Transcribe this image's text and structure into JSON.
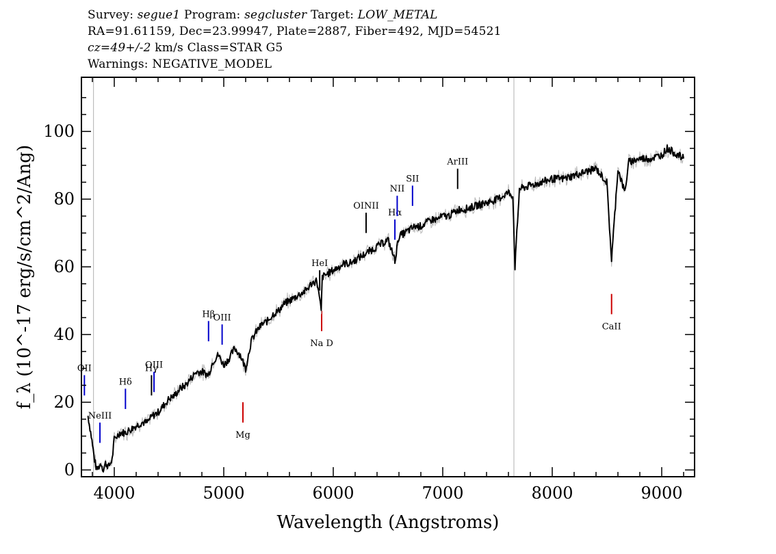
{
  "header": {
    "survey_label": "Survey:",
    "survey": "segue1",
    "program_label": "Program:",
    "program": "segcluster",
    "target_label": "Target:",
    "target": "LOW_METAL",
    "line2": "RA=91.61159, Dec=23.99947, Plate=2887, Fiber=492, MJD=54521",
    "cz": "cz=49+/-2",
    "cz_units_class": "km/s Class=STAR G5",
    "warnings": "Warnings: NEGATIVE_MODEL"
  },
  "chart_data": {
    "type": "line",
    "xlabel": "Wavelength (Angstroms)",
    "ylabel": "f_λ (10^-17 erg/s/cm^2/Ang)",
    "xlim": [
      3700,
      9300
    ],
    "ylim": [
      -2,
      116
    ],
    "x_ticks": [
      4000,
      5000,
      6000,
      7000,
      8000,
      9000
    ],
    "y_ticks": [
      0,
      20,
      40,
      60,
      80,
      100
    ],
    "grid": false,
    "vertical_markers": [
      3810,
      7650
    ],
    "series": [
      {
        "color": "#000000",
        "x": [
          3760,
          3790,
          3820,
          3840,
          3860,
          3880,
          3900,
          3920,
          3950,
          3980,
          4000,
          4050,
          4100,
          4150,
          4200,
          4250,
          4300,
          4350,
          4400,
          4450,
          4500,
          4550,
          4600,
          4650,
          4700,
          4750,
          4800,
          4860,
          4900,
          4950,
          5000,
          5050,
          5100,
          5150,
          5200,
          5250,
          5300,
          5350,
          5400,
          5450,
          5500,
          5550,
          5600,
          5650,
          5700,
          5750,
          5800,
          5850,
          5890,
          5900,
          5950,
          6000,
          6050,
          6100,
          6150,
          6200,
          6250,
          6300,
          6350,
          6400,
          6450,
          6500,
          6563,
          6600,
          6650,
          6700,
          6750,
          6800,
          6850,
          6900,
          6950,
          7000,
          7050,
          7100,
          7150,
          7200,
          7300,
          7400,
          7500,
          7600,
          7640,
          7660,
          7700,
          7800,
          7900,
          8000,
          8100,
          8200,
          8300,
          8400,
          8498,
          8542,
          8600,
          8662,
          8700,
          8800,
          8900,
          9000,
          9050,
          9100,
          9150,
          9200
        ],
        "y": [
          16,
          10,
          3,
          0,
          1,
          2,
          0,
          2,
          1,
          3,
          9,
          11,
          11,
          12,
          13,
          14,
          14,
          16,
          17,
          19,
          21,
          22,
          24,
          25,
          27,
          29,
          29,
          28,
          32,
          34,
          31,
          33,
          36,
          34,
          30,
          38,
          41,
          43,
          44,
          46,
          47,
          49,
          50,
          51,
          52,
          53,
          55,
          56,
          47,
          57,
          58,
          59,
          60,
          61,
          61,
          62,
          63,
          64,
          65,
          66,
          67,
          68,
          62,
          69,
          70,
          71,
          72,
          72,
          73,
          74,
          74,
          75,
          75,
          76,
          77,
          77,
          78,
          79,
          80,
          82,
          81,
          60,
          83,
          84,
          85,
          86,
          86,
          87,
          88,
          89,
          85,
          62,
          89,
          82,
          91,
          92,
          92,
          93,
          95,
          94,
          93,
          92
        ]
      }
    ],
    "line_labels": [
      {
        "label": "OII",
        "wavelength": 3727,
        "color": "#0000cc"
      },
      {
        "label": "NeIII",
        "wavelength": 3869,
        "color": "#0000cc"
      },
      {
        "label": "Hδ",
        "wavelength": 4102,
        "color": "#0000cc"
      },
      {
        "label": "Hγ",
        "wavelength": 4340,
        "color": "#000000"
      },
      {
        "label": "OIII",
        "wavelength": 4363,
        "color": "#0000cc"
      },
      {
        "label": "Hβ",
        "wavelength": 4861,
        "color": "#0000cc"
      },
      {
        "label": "OIII",
        "wavelength": 4985,
        "color": "#0000cc"
      },
      {
        "label": "HeI",
        "wavelength": 5876,
        "color": "#000000"
      },
      {
        "label": "OINII",
        "wavelength": 6300,
        "color": "#000000"
      },
      {
        "label": "Hα",
        "wavelength": 6563,
        "color": "#0000cc"
      },
      {
        "label": "NII",
        "wavelength": 6584,
        "color": "#0000cc"
      },
      {
        "label": "SII",
        "wavelength": 6724,
        "color": "#0000cc"
      },
      {
        "label": "ArIII",
        "wavelength": 7136,
        "color": "#000000"
      },
      {
        "label": "Mg",
        "wavelength": 5175,
        "color": "#cc0000"
      },
      {
        "label": "Na D",
        "wavelength": 5894,
        "color": "#cc0000"
      },
      {
        "label": "CaII",
        "wavelength": 8542,
        "color": "#cc0000"
      }
    ]
  }
}
